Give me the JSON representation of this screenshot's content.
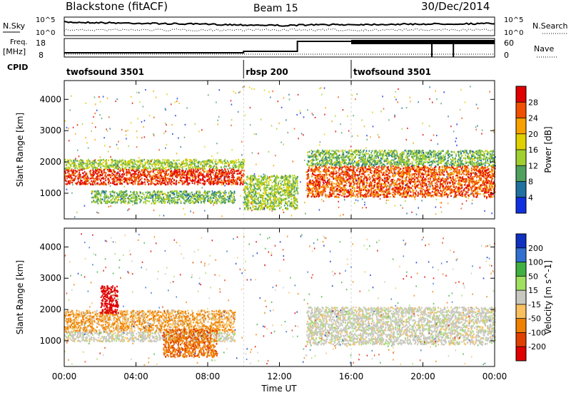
{
  "header": {
    "station": "Blackstone (fitACF)",
    "beam": "Beam 15",
    "date": "30/Dec/2014"
  },
  "noise_panel": {
    "left_label": "N.Sky",
    "left_ticks": [
      "10^5",
      "10^0"
    ],
    "right_ticks": [
      "10^5",
      "10^0"
    ],
    "right_label": "N.Search"
  },
  "freq_panel": {
    "left_label_1": "Freq.",
    "left_label_2": "[MHz]",
    "left_ticks": [
      "18",
      "8"
    ],
    "right_ticks": [
      "60",
      "0"
    ],
    "right_label": "Nave"
  },
  "cpid_panel": {
    "label": "CPID",
    "segments": [
      {
        "name": "twofsound 3501",
        "start_hour": 0
      },
      {
        "name": "rbsp 200",
        "start_hour": 10
      },
      {
        "name": "twofsound 3501",
        "start_hour": 16
      }
    ]
  },
  "axes": {
    "x_label": "Time UT",
    "x_ticks": [
      "00:00",
      "04:00",
      "08:00",
      "12:00",
      "16:00",
      "20:00",
      "00:00"
    ],
    "x_range_hours": [
      0,
      24
    ],
    "y_label": "Slant Range [km]",
    "y_ticks": [
      "4000",
      "3000",
      "2000",
      "1000"
    ],
    "y_range_km": [
      180,
      4600
    ]
  },
  "chart_data": [
    {
      "type": "heatmap",
      "quantity": "Power",
      "colorbar_label": "Power [dB]",
      "colorbar_ticks": [
        "28",
        "24",
        "20",
        "16",
        "12",
        "8",
        "4"
      ],
      "colorbar_colors": [
        "#e00000",
        "#f05000",
        "#f8a000",
        "#e0d000",
        "#a0d030",
        "#50a060",
        "#2070a0",
        "#1030e0"
      ],
      "x_range_hours": [
        0,
        24
      ],
      "y_range_km": [
        180,
        4600
      ],
      "bands": [
        {
          "t_start": 0.0,
          "t_end": 10.0,
          "range_km": [
            1300,
            1800
          ],
          "level_db": 26
        },
        {
          "t_start": 0.0,
          "t_end": 10.0,
          "range_km": [
            1800,
            2100
          ],
          "level_db": 12
        },
        {
          "t_start": 1.5,
          "t_end": 9.5,
          "range_km": [
            700,
            1100
          ],
          "level_db": 10
        },
        {
          "t_start": 10.0,
          "t_end": 13.0,
          "range_km": [
            500,
            1600
          ],
          "level_db": 12
        },
        {
          "t_start": 13.5,
          "t_end": 24.0,
          "range_km": [
            900,
            1900
          ],
          "level_db": 24
        },
        {
          "t_start": 13.5,
          "t_end": 24.0,
          "range_km": [
            1900,
            2400
          ],
          "level_db": 10
        }
      ]
    },
    {
      "type": "heatmap",
      "quantity": "Velocity",
      "colorbar_label": "Velocity [m s^-1]",
      "colorbar_ticks": [
        "200",
        "100",
        "50",
        "15",
        "-15",
        "-50",
        "-100",
        "-200"
      ],
      "colorbar_colors": [
        "#1030c0",
        "#3070d0",
        "#40b040",
        "#a0e060",
        "#c8c8c0",
        "#f8c060",
        "#f08000",
        "#e04000",
        "#e00000"
      ],
      "x_range_hours": [
        0,
        24
      ],
      "y_range_km": [
        180,
        4600
      ],
      "bands": [
        {
          "t_start": 0.0,
          "t_end": 9.5,
          "range_km": [
            1300,
            2000
          ],
          "velocity_ms": -30
        },
        {
          "t_start": 0.0,
          "t_end": 9.5,
          "range_km": [
            1000,
            1300
          ],
          "velocity_ms": 0
        },
        {
          "t_start": 2.0,
          "t_end": 3.0,
          "range_km": [
            1900,
            2800
          ],
          "velocity_ms": -200
        },
        {
          "t_start": 5.5,
          "t_end": 8.5,
          "range_km": [
            500,
            1400
          ],
          "velocity_ms": -70
        },
        {
          "t_start": 13.5,
          "t_end": 24.0,
          "range_km": [
            900,
            2100
          ],
          "velocity_ms": 0
        }
      ]
    }
  ]
}
